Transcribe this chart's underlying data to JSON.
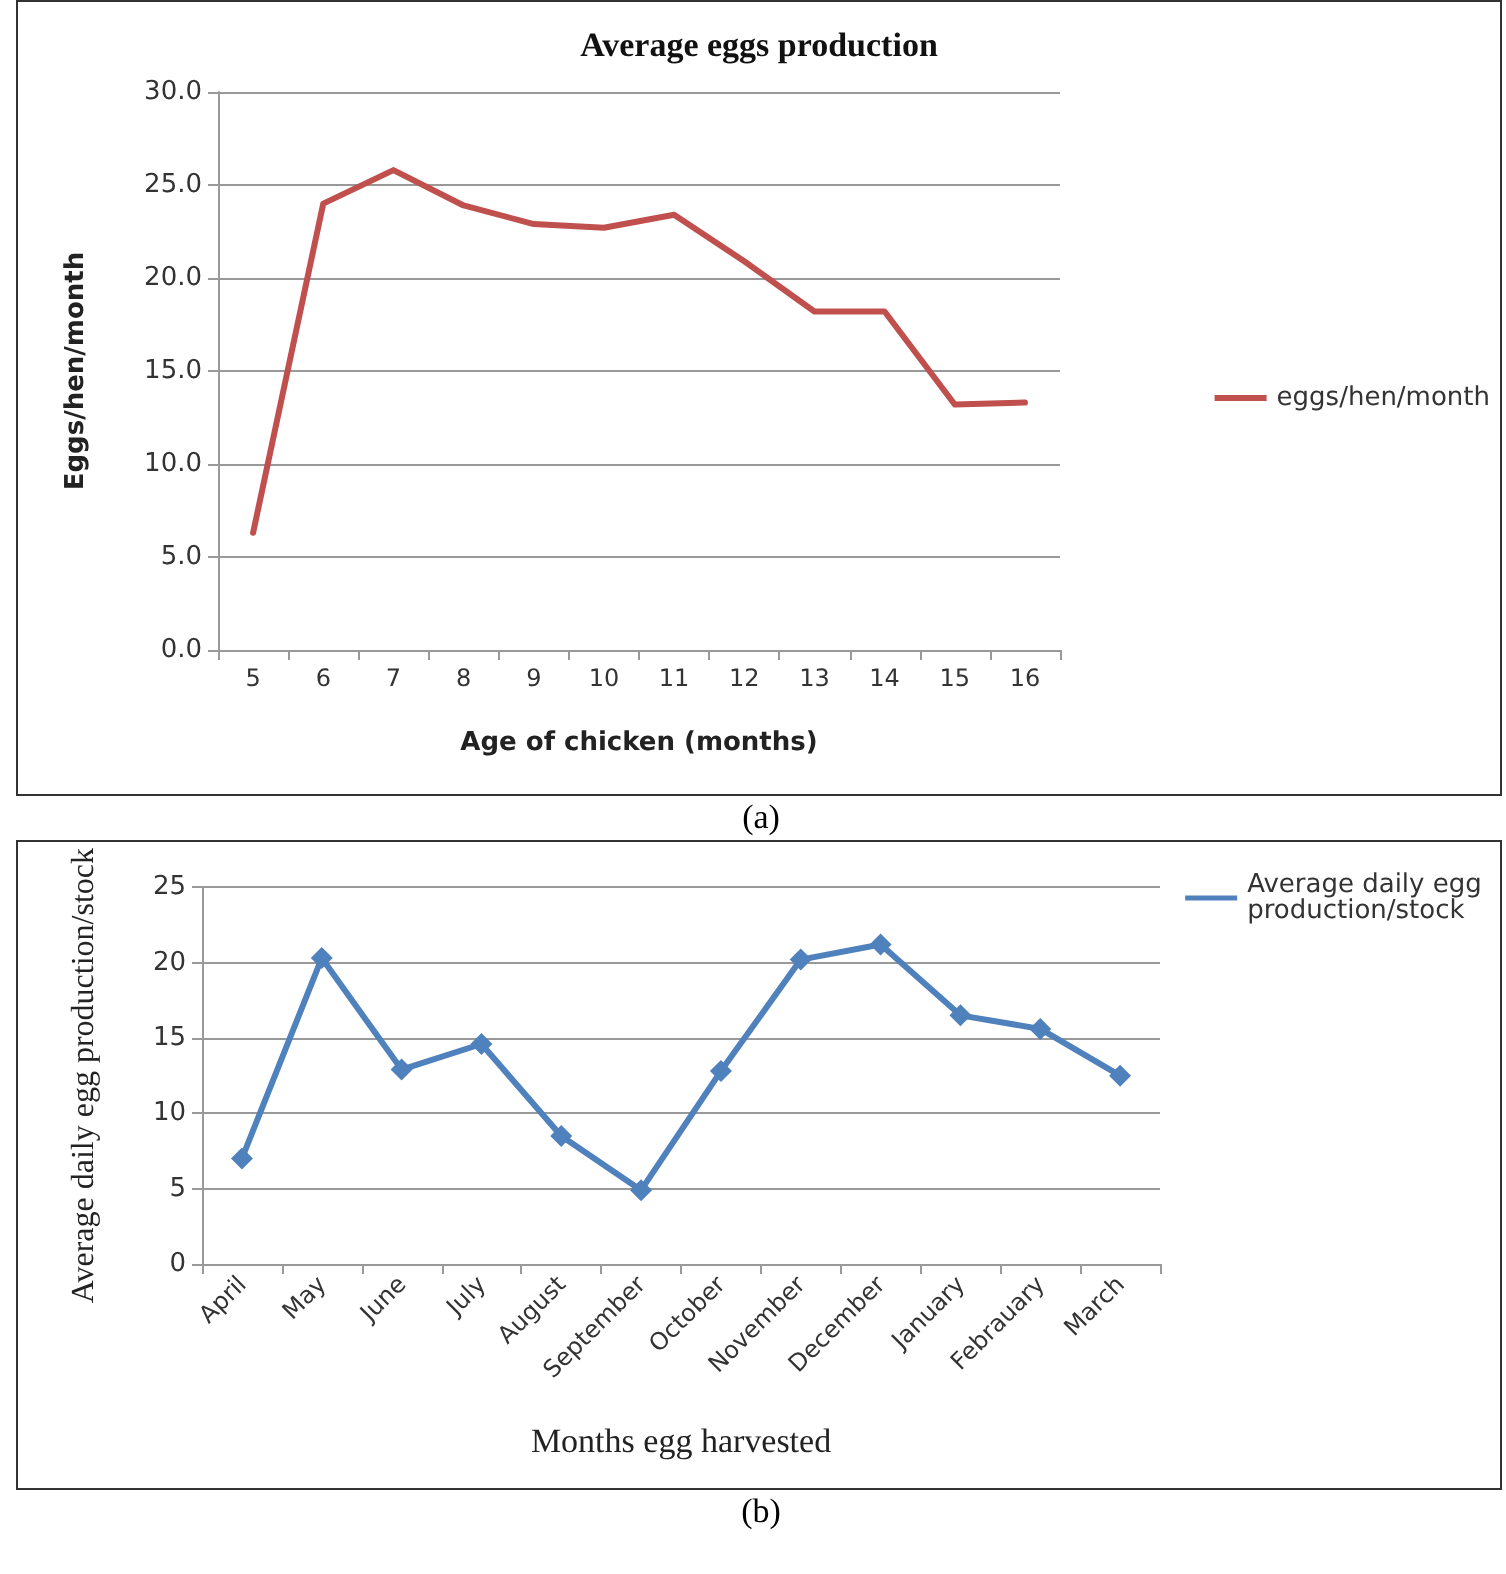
{
  "chart_data": [
    {
      "type": "line",
      "title": "Average eggs production",
      "xlabel": "Age of chicken (months)",
      "ylabel": "Eggs/hen/month",
      "categories": [
        "5",
        "6",
        "7",
        "8",
        "9",
        "10",
        "11",
        "12",
        "13",
        "14",
        "15",
        "16"
      ],
      "series": [
        {
          "name": "eggs/hen/month",
          "color": "#c0504d",
          "values": [
            6.3,
            24.0,
            25.8,
            23.9,
            22.9,
            22.7,
            23.4,
            20.9,
            18.2,
            18.2,
            13.2,
            13.3
          ]
        }
      ],
      "ylim": [
        0,
        30
      ],
      "yticks": [
        {
          "value": 0,
          "label": "0.0"
        },
        {
          "value": 5,
          "label": "5.0"
        },
        {
          "value": 10,
          "label": "10.0"
        },
        {
          "value": 15,
          "label": "15.0"
        },
        {
          "value": 20,
          "label": "20.0"
        },
        {
          "value": 25,
          "label": "25.0"
        },
        {
          "value": 30,
          "label": "30.0"
        }
      ],
      "grid": "y",
      "legend": "right",
      "marker": "none",
      "line_style": "solid",
      "annotations": [
        "(a)"
      ]
    },
    {
      "type": "line",
      "xlabel": "Months egg harvested",
      "ylabel": "Average daily egg production/stock",
      "categories": [
        "April",
        "May",
        "June",
        "July",
        "August",
        "September",
        "October",
        "November",
        "December",
        "January",
        "Febrauary",
        "March"
      ],
      "series": [
        {
          "name": "Average daily egg production/stock",
          "color": "#4f81bd",
          "values": [
            7.0,
            20.3,
            12.9,
            14.6,
            8.5,
            4.9,
            12.8,
            20.2,
            21.2,
            16.5,
            15.6,
            12.5
          ]
        }
      ],
      "ylim": [
        0,
        25
      ],
      "yticks": [
        0,
        5,
        10,
        15,
        20,
        25
      ],
      "grid": "y",
      "legend": "top right",
      "marker": "diamond",
      "line_style": "solid",
      "annotations": [
        "(b)"
      ]
    }
  ]
}
